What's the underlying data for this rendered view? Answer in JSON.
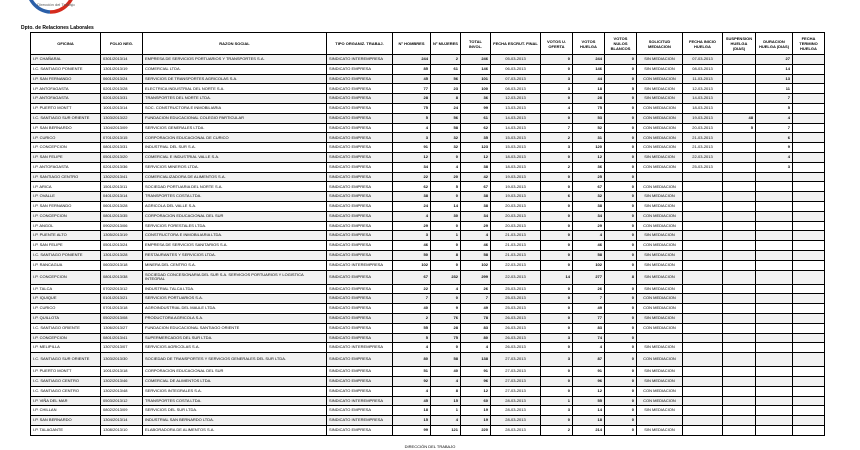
{
  "header": {
    "logo_text": "Dirección del Trabajo",
    "department": "Dpto. de Relaciones Laborales"
  },
  "colors": {
    "logo_red": "#d52b1e",
    "logo_blue": "#2b5fa8"
  },
  "table": {
    "columns": [
      "OFICINA",
      "FOLIO NEG.",
      "RAZON SOCIAL",
      "TIPO ORGANIZ. TRABAJ.",
      "N° HOMBRES",
      "N° MUJERES",
      "TOTAL INVOL.",
      "FECHA ESCRUT. FINAL",
      "VOTOS U. OFERTA",
      "VOTOS HUELGA",
      "VOTOS NULOS BLANCOS",
      "SOLICITUD MEDIACION",
      "FECHA INICIO HUELGA",
      "SUSPENSION HUELGA (DIAS)",
      "DURACION HUELGA (DIAS)",
      "FECHA TERMINO HUELGA"
    ],
    "rows": [
      [
        "I.P. CHAÑARAL",
        "0301/2013/14",
        "EMPRESA DE SERVICIOS PORTUARIOS Y TRANSPORTES S.A.",
        "SINDICATO INTEREMPRESA",
        "244",
        "2",
        "246",
        "05-03-2013",
        "0",
        "244",
        "0",
        "SIN MEDIACION",
        "07-03-2013",
        "",
        "27",
        ""
      ],
      [
        "I.C. SANTIAGO PONIENTE",
        "1301/2013/19",
        "COMERCIAL LTDA.",
        "SINDICATO EMPRESA",
        "85",
        "61",
        "146",
        "06-03-2013",
        "0",
        "146",
        "0",
        "SIN MEDIACION",
        "08-03-2013",
        "",
        "14",
        ""
      ],
      [
        "I.P. SAN FERNANDO",
        "0601/2013/24",
        "SERVICIOS DE TRANSPORTES AGRICOLAS S.A.",
        "SINDICATO EMPRESA",
        "45",
        "56",
        "101",
        "07-03-2013",
        "3",
        "44",
        "0",
        "CON MEDIACION",
        "11-03-2013",
        "",
        "13",
        ""
      ],
      [
        "I.P. ANTOFAGASTA",
        "0201/2013/28",
        "ELECTRICA INDUSTRIAL DEL NORTE S.A.",
        "SINDICATO EMPRESA",
        "77",
        "23",
        "100",
        "08-03-2013",
        "3",
        "18",
        "5",
        "SIN MEDIACION",
        "12-03-2013",
        "",
        "11",
        ""
      ],
      [
        "I.P. ANTOFAGASTA",
        "0201/2013/31",
        "TRANSPORTES DEL NORTE LTDA.",
        "SINDICATO EMPRESA",
        "28",
        "8",
        "36",
        "12-03-2013",
        "0",
        "28",
        "0",
        "SIN MEDIACION",
        "14-03-2013",
        "",
        "7",
        ""
      ],
      [
        "I.P. PUERTO MONTT",
        "1001/2013/14",
        "SOC. CONSTRUCTORA E INMOBILIARIA",
        "SINDICATO EMPRESA",
        "75",
        "24",
        "99",
        "13-03-2013",
        "4",
        "75",
        "0",
        "CON MEDIACION",
        "18-03-2013",
        "",
        "5",
        ""
      ],
      [
        "I.C. SANTIAGO SUR ORIENTE",
        "1303/2013/22",
        "FUNDACION EDUCACIONAL COLEGIO PARTICULAR",
        "SINDICATO EMPRESA",
        "5",
        "56",
        "61",
        "14-03-2013",
        "0",
        "53",
        "0",
        "CON MEDIACION",
        "19-03-2013",
        "48",
        "4",
        ""
      ],
      [
        "I.P. SAN BERNARDO",
        "1304/2013/09",
        "SERVICIOS GENERALES LTDA.",
        "SINDICATO EMPRESA",
        "4",
        "58",
        "62",
        "14-03-2013",
        "7",
        "52",
        "0",
        "CON MEDIACION",
        "20-03-2013",
        "5",
        "7",
        ""
      ],
      [
        "I.P. CURICO",
        "0701/2013/15",
        "CORPORACION EDUCACIONAL DE CURICO",
        "SINDICATO EMPRESA",
        "3",
        "32",
        "35",
        "15-03-2013",
        "2",
        "31",
        "0",
        "CON MEDIACION",
        "21-03-2013",
        "",
        "6",
        ""
      ],
      [
        "I.P. CONCEPCION",
        "0801/2013/31",
        "INDUSTRIAL DEL SUR S.A.",
        "SINDICATO EMPRESA",
        "91",
        "32",
        "123",
        "15-03-2013",
        "3",
        "120",
        "0",
        "CON MEDIACION",
        "21-03-2013",
        "",
        "9",
        ""
      ],
      [
        "I.P. SAN FELIPE",
        "0501/2013/20",
        "COMERCIAL E INDUSTRIAL VALLE S.A.",
        "SINDICATO EMPRESA",
        "12",
        "0",
        "12",
        "18-03-2013",
        "0",
        "12",
        "0",
        "SIN MEDIACION",
        "22-03-2013",
        "",
        "4",
        ""
      ],
      [
        "I.P. ANTOFAGASTA",
        "0201/2013/36",
        "SERVICIOS MINEROS LTDA.",
        "SINDICATO EMPRESA",
        "34",
        "4",
        "38",
        "18-03-2013",
        "2",
        "36",
        "0",
        "CON MEDIACION",
        "25-03-2013",
        "",
        "3",
        ""
      ],
      [
        "I.P. SANTIAGO CENTRO",
        "1302/2013/41",
        "COMERCIALIZADORA DE ALIMENTOS S.A.",
        "SINDICATO EMPRESA",
        "22",
        "20",
        "42",
        "19-03-2013",
        "0",
        "25",
        "0",
        "",
        "",
        "",
        "",
        ""
      ],
      [
        "I.P. ARICA",
        "1501/2013/11",
        "SOCIEDAD PORTUARIA DEL NORTE S.A.",
        "SINDICATO EMPRESA",
        "62",
        "5",
        "67",
        "19-03-2013",
        "0",
        "67",
        "0",
        "CON MEDIACION",
        "",
        "",
        "",
        ""
      ],
      [
        "I.P. OVALLE",
        "0401/2013/14",
        "TRANSPORTES COSTA LTDA.",
        "SINDICATO EMPRESA",
        "38",
        "0",
        "38",
        "19-03-2013",
        "6",
        "32",
        "0",
        "SIN MEDIACION",
        "",
        "",
        "",
        ""
      ],
      [
        "I.P. SAN FERNANDO",
        "0601/2013/28",
        "AGRICOLA DEL VALLE S.A.",
        "SINDICATO EMPRESA",
        "24",
        "14",
        "38",
        "20-03-2013",
        "0",
        "38",
        "0",
        "SIN MEDIACION",
        "",
        "",
        "",
        ""
      ],
      [
        "I.P. CONCEPCION",
        "0801/2013/35",
        "CORPORACION EDUCACIONAL DEL SUR",
        "SINDICATO EMPRESA",
        "4",
        "30",
        "34",
        "20-03-2013",
        "0",
        "34",
        "0",
        "CON MEDIACION",
        "",
        "",
        "",
        ""
      ],
      [
        "I.P. ANGOL",
        "0902/2013/06",
        "SERVICIOS FORESTALES LTDA.",
        "SINDICATO EMPRESA",
        "29",
        "0",
        "29",
        "20-03-2013",
        "0",
        "29",
        "0",
        "CON MEDIACION",
        "",
        "",
        "",
        ""
      ],
      [
        "I.P. PUENTE ALTO",
        "1305/2013/19",
        "CONSTRUCTORA E INMOBILIARIA LTDA.",
        "SINDICATO EMPRESA",
        "3",
        "1",
        "4",
        "21-03-2013",
        "0",
        "4",
        "0",
        "SIN MEDIACION",
        "",
        "",
        "",
        ""
      ],
      [
        "I.P. SAN FELIPE",
        "0501/2013/24",
        "EMPRESA DE SERVICIOS SANITARIOS S.A.",
        "SINDICATO EMPRESA",
        "46",
        "0",
        "46",
        "21-03-2013",
        "0",
        "46",
        "0",
        "CON MEDIACION",
        "",
        "",
        "",
        ""
      ],
      [
        "I.C. SANTIAGO PONIENTE",
        "1301/2013/28",
        "RESTAURANTES Y SERVICIOS LTDA.",
        "SINDICATO EMPRESA",
        "50",
        "8",
        "58",
        "21-03-2013",
        "0",
        "58",
        "0",
        "SIN MEDIACION",
        "",
        "",
        "",
        ""
      ],
      [
        "I.P. RANCAGUA",
        "0603/2013/18",
        "MINERA DEL CENTRO S.A.",
        "SINDICATO INTEREMPRESA",
        "102",
        "0",
        "102",
        "22-03-2013",
        "0",
        "102",
        "0",
        "SIN MEDIACION",
        "",
        "",
        "",
        ""
      ],
      [
        "I.P. CONCEPCION",
        "0801/2013/38",
        "SOCIEDAD CONCESIONARIA DEL SUR S.A. SERVICIOS PORTUARIOS Y LOGISTICA INTEGRAL",
        "SINDICATO EMPRESA",
        "67",
        "232",
        "299",
        "22-03-2013",
        "14",
        "277",
        "8",
        "SIN MEDIACION",
        "",
        "",
        "",
        ""
      ],
      [
        "I.P. TALCA",
        "0702/2013/12",
        "INDUSTRIAL TALCA LTDA.",
        "SINDICATO EMPRESA",
        "22",
        "4",
        "26",
        "25-03-2013",
        "0",
        "26",
        "0",
        "SIN MEDIACION",
        "",
        "",
        "",
        ""
      ],
      [
        "I.P. IQUIQUE",
        "0101/2013/21",
        "SERVICIOS PORTUARIOS S.A.",
        "SINDICATO EMPRESA",
        "7",
        "0",
        "7",
        "25-03-2013",
        "0",
        "7",
        "0",
        "CON MEDIACION",
        "",
        "",
        "",
        ""
      ],
      [
        "I.P. CURICO",
        "0701/2013/18",
        "AGROINDUSTRIAL DEL MAULE LTDA.",
        "SINDICATO EMPRESA",
        "40",
        "9",
        "49",
        "25-03-2013",
        "0",
        "49",
        "0",
        "CON MEDIACION",
        "",
        "",
        "",
        ""
      ],
      [
        "I.P. QUILLOTA",
        "0502/2013/08",
        "PRODUCTORA AGRICOLA S.A.",
        "SINDICATO EMPRESA",
        "2",
        "76",
        "78",
        "26-03-2013",
        "0",
        "77",
        "0",
        "SIN MEDIACION",
        "",
        "",
        "",
        ""
      ],
      [
        "I.C. SANTIAGO ORIENTE",
        "1306/2013/27",
        "FUNDACION EDUCACIONAL SANTIAGO ORIENTE",
        "SINDICATO EMPRESA",
        "55",
        "28",
        "83",
        "26-03-2013",
        "0",
        "83",
        "0",
        "CON MEDIACION",
        "",
        "",
        "",
        ""
      ],
      [
        "I.P. CONCEPCION",
        "0801/2013/41",
        "SUPERMERCADOS DEL SUR LTDA.",
        "SINDICATO EMPRESA",
        "5",
        "75",
        "80",
        "26-03-2013",
        "3",
        "74",
        "0",
        "",
        "",
        "",
        "",
        ""
      ],
      [
        "I.P. MELIPILLA",
        "1307/2013/07",
        "SERVICIOS AGRICOLAS S.A.",
        "SINDICATO INTEREMPRESA",
        "4",
        "0",
        "4",
        "26-03-2013",
        "0",
        "4",
        "0",
        "SIN MEDIACION",
        "",
        "",
        "",
        ""
      ],
      [
        "I.C. SANTIAGO SUR ORIENTE",
        "1303/2013/30",
        "SOCIEDAD DE TRANSPORTES Y SERVICIOS GENERALES DEL SUR LTDA.",
        "SINDICATO EMPRESA",
        "80",
        "58",
        "138",
        "27-03-2013",
        "3",
        "87",
        "0",
        "CON MEDIACION",
        "",
        "",
        "",
        ""
      ],
      [
        "I.P. PUERTO MONTT",
        "1001/2013/18",
        "CORPORACION EDUCACIONAL DEL SUR",
        "SINDICATO EMPRESA",
        "51",
        "40",
        "91",
        "27-03-2013",
        "0",
        "91",
        "0",
        "SIN MEDIACION",
        "",
        "",
        "",
        ""
      ],
      [
        "I.C. SANTIAGO CENTRO",
        "1302/2013/46",
        "COMERCIAL DE ALIMENTOS LTDA.",
        "SINDICATO EMPRESA",
        "92",
        "4",
        "96",
        "27-03-2013",
        "0",
        "96",
        "0",
        "SIN MEDIACION",
        "",
        "",
        "",
        ""
      ],
      [
        "I.C. SANTIAGO CENTRO",
        "1302/2013/48",
        "SERVICIOS INTEGRALES S.A.",
        "SINDICATO EMPRESA",
        "4",
        "8",
        "12",
        "27-03-2013",
        "0",
        "12",
        "0",
        "CON MEDIACION",
        "",
        "",
        "",
        ""
      ],
      [
        "I.P. VIÑA DEL MAR",
        "0503/2013/12",
        "TRANSPORTES COSTA LTDA.",
        "SINDICATO INTEREMPRESA",
        "45",
        "15",
        "60",
        "28-03-2013",
        "1",
        "55",
        "0",
        "CON MEDIACION",
        "",
        "",
        "",
        ""
      ],
      [
        "I.P. CHILLAN",
        "0802/2013/09",
        "SERVICIOS DEL SUR LTDA.",
        "SINDICATO EMPRESA",
        "18",
        "1",
        "19",
        "28-03-2013",
        "3",
        "14",
        "0",
        "SIN MEDIACION",
        "",
        "",
        "",
        ""
      ],
      [
        "I.P. SAN BERNARDO",
        "1304/2013/14",
        "INDUSTRIAL SAN BERNARDO LTDA.",
        "SINDICATO INTEREMPRESA",
        "15",
        "4",
        "19",
        "28-03-2013",
        "0",
        "18",
        "0",
        "",
        "",
        "",
        "",
        ""
      ],
      [
        "I.P. TALAGANTE",
        "1308/2013/10",
        "ELABORADORA DE ALIMENTOS S.A.",
        "SINDICATO EMPRESA",
        "99",
        "121",
        "220",
        "28-03-2013",
        "2",
        "214",
        "0",
        "SIN MEDIACION",
        "",
        "",
        "",
        ""
      ]
    ]
  },
  "footer": {
    "text": "DIRECCIÓN DEL TRABAJO"
  }
}
